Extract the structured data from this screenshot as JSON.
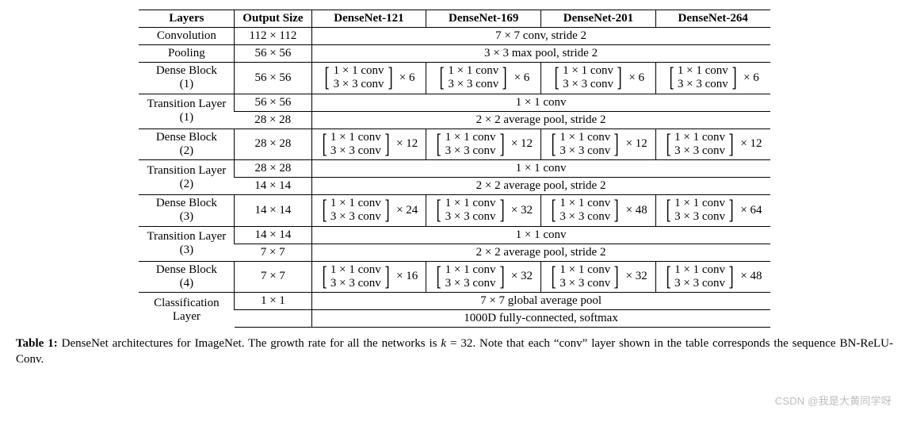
{
  "headers": [
    "Layers",
    "Output Size",
    "DenseNet-121",
    "DenseNet-169",
    "DenseNet-201",
    "DenseNet-264"
  ],
  "rows": {
    "convolution": {
      "label": "Convolution",
      "size": "112 × 112",
      "desc": "7 × 7 conv, stride 2"
    },
    "pooling": {
      "label": "Pooling",
      "size": "56 × 56",
      "desc": "3 × 3 max pool, stride 2"
    },
    "db1": {
      "label1": "Dense Block",
      "label2": "(1)",
      "size": "56 × 56",
      "l1": "1 × 1 conv",
      "l2": "3 × 3 conv",
      "m": [
        "× 6",
        "× 6",
        "× 6",
        "× 6"
      ]
    },
    "tl1": {
      "label1": "Transition Layer",
      "label2": "(1)",
      "size1": "56 × 56",
      "desc1": "1 × 1 conv",
      "size2": "28 × 28",
      "desc2": "2 × 2 average pool, stride 2"
    },
    "db2": {
      "label1": "Dense Block",
      "label2": "(2)",
      "size": "28 × 28",
      "l1": "1 × 1 conv",
      "l2": "3 × 3 conv",
      "m": [
        "× 12",
        "× 12",
        "× 12",
        "× 12"
      ]
    },
    "tl2": {
      "label1": "Transition Layer",
      "label2": "(2)",
      "size1": "28 × 28",
      "desc1": "1 × 1 conv",
      "size2": "14 × 14",
      "desc2": "2 × 2 average pool, stride 2"
    },
    "db3": {
      "label1": "Dense Block",
      "label2": "(3)",
      "size": "14 × 14",
      "l1": "1 × 1 conv",
      "l2": "3 × 3 conv",
      "m": [
        "× 24",
        "× 32",
        "× 48",
        "× 64"
      ]
    },
    "tl3": {
      "label1": "Transition Layer",
      "label2": "(3)",
      "size1": "14 × 14",
      "desc1": "1 × 1 conv",
      "size2": "7 × 7",
      "desc2": "2 × 2 average pool, stride 2"
    },
    "db4": {
      "label1": "Dense Block",
      "label2": "(4)",
      "size": "7 × 7",
      "l1": "1 × 1 conv",
      "l2": "3 × 3 conv",
      "m": [
        "× 16",
        "× 32",
        "× 32",
        "× 48"
      ]
    },
    "cls": {
      "label1": "Classification",
      "label2": "Layer",
      "size1": "1 × 1",
      "desc1": "7 × 7 global average pool",
      "desc2": "1000D fully-connected, softmax"
    }
  },
  "caption": {
    "lead": "Table 1:",
    "body1": " DenseNet architectures for ImageNet. The growth rate for all the networks is ",
    "kvar": "k",
    "keq": " = 32",
    "body2": ". Note that each “conv” layer shown in the table corresponds the sequence BN-ReLU-Conv."
  },
  "watermark": "CSDN @我是大黄同学呀"
}
